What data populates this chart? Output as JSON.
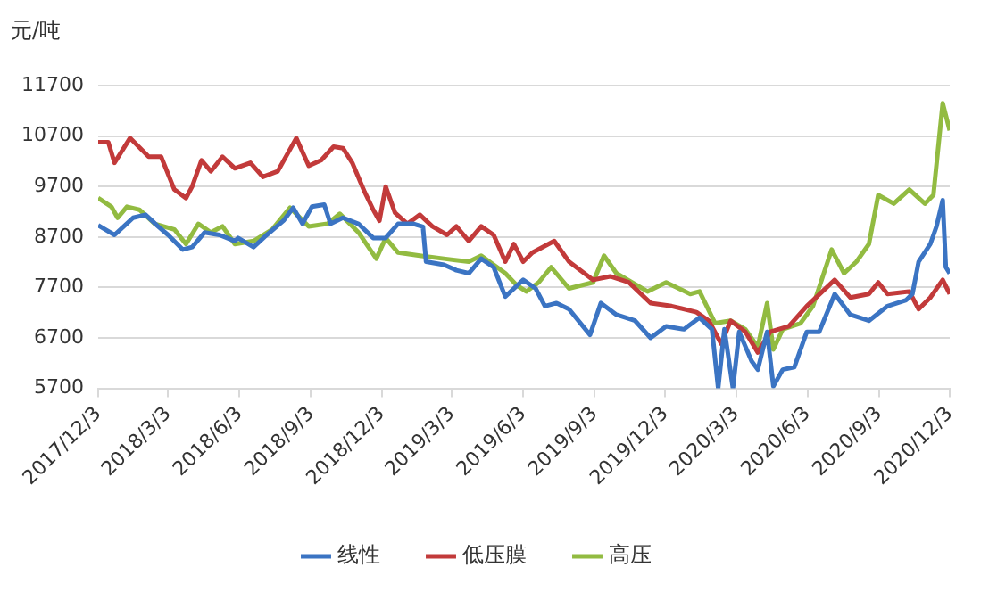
{
  "chart_data": {
    "type": "line",
    "ylabel": "元/吨",
    "xlim": [
      "2017-12-03",
      "2020-12-03"
    ],
    "ylim": [
      5700,
      11700
    ],
    "yticks": [
      5700,
      6700,
      7700,
      8700,
      9700,
      10700,
      11700
    ],
    "xticks": [
      {
        "value": "2017-12-03",
        "label": "2017/12/3"
      },
      {
        "value": "2018-03-03",
        "label": "2018/3/3"
      },
      {
        "value": "2018-06-03",
        "label": "2018/6/3"
      },
      {
        "value": "2018-09-03",
        "label": "2018/9/3"
      },
      {
        "value": "2018-12-03",
        "label": "2018/12/3"
      },
      {
        "value": "2019-03-03",
        "label": "2019/3/3"
      },
      {
        "value": "2019-06-03",
        "label": "2019/6/3"
      },
      {
        "value": "2019-09-03",
        "label": "2019/9/3"
      },
      {
        "value": "2019-12-03",
        "label": "2019/12/3"
      },
      {
        "value": "2020-03-03",
        "label": "2020/3/3"
      },
      {
        "value": "2020-06-03",
        "label": "2020/6/3"
      },
      {
        "value": "2020-09-03",
        "label": "2020/9/3"
      },
      {
        "value": "2020-12-03",
        "label": "2020/12/3"
      }
    ],
    "grid": "y",
    "legend": "bottom",
    "marker": "none",
    "line_style": "solid",
    "series": [
      {
        "name": "线性",
        "color": "#3b74c3",
        "x": [
          "2017-12-03",
          "2017-12-24",
          "2018-01-17",
          "2018-02-02",
          "2018-02-18",
          "2018-03-03",
          "2018-03-22",
          "2018-04-03",
          "2018-04-19",
          "2018-05-08",
          "2018-05-28",
          "2018-06-01",
          "2018-06-21",
          "2018-07-08",
          "2018-07-30",
          "2018-08-11",
          "2018-08-23",
          "2018-09-04",
          "2018-09-20",
          "2018-09-28",
          "2018-10-14",
          "2018-11-03",
          "2018-11-22",
          "2018-12-08",
          "2018-12-24",
          "2019-01-13",
          "2019-01-25",
          "2019-01-29",
          "2019-02-21",
          "2019-03-09",
          "2019-03-25",
          "2019-04-10",
          "2019-04-26",
          "2019-05-11",
          "2019-06-03",
          "2019-06-19",
          "2019-07-01",
          "2019-07-16",
          "2019-08-01",
          "2019-08-28",
          "2019-09-11",
          "2019-10-01",
          "2019-10-25",
          "2019-11-14",
          "2019-12-04",
          "2019-12-27",
          "2020-01-16",
          "2020-02-01",
          "2020-02-09",
          "2020-02-17",
          "2020-02-28",
          "2020-03-07",
          "2020-03-23",
          "2020-03-31",
          "2020-04-12",
          "2020-04-20",
          "2020-05-02",
          "2020-05-17",
          "2020-06-02",
          "2020-06-18",
          "2020-07-08",
          "2020-07-28",
          "2020-08-21",
          "2020-09-14",
          "2020-10-08",
          "2020-10-16",
          "2020-10-24",
          "2020-11-08",
          "2020-11-16",
          "2020-11-24",
          "2020-11-28",
          "2020-12-03"
        ],
        "values": [
          8930,
          8740,
          9080,
          9140,
          8910,
          8740,
          8450,
          8500,
          8790,
          8740,
          8620,
          8680,
          8500,
          8740,
          9030,
          9280,
          8960,
          9300,
          9340,
          8960,
          9080,
          8960,
          8680,
          8680,
          8960,
          8960,
          8900,
          8210,
          8150,
          8040,
          7980,
          8270,
          8100,
          7520,
          7850,
          7680,
          7330,
          7390,
          7270,
          6760,
          7390,
          7160,
          7040,
          6700,
          6930,
          6870,
          7100,
          6870,
          5700,
          6870,
          5700,
          6820,
          6240,
          6070,
          6820,
          5740,
          6070,
          6120,
          6820,
          6820,
          7570,
          7160,
          7040,
          7330,
          7450,
          7570,
          8210,
          8560,
          8910,
          9430,
          8100,
          7980
        ]
      },
      {
        "name": "低压膜",
        "color": "#c23a3a",
        "x": [
          "2017-12-03",
          "2017-12-16",
          "2017-12-24",
          "2018-01-13",
          "2018-02-06",
          "2018-02-22",
          "2018-03-11",
          "2018-03-26",
          "2018-04-03",
          "2018-04-15",
          "2018-04-27",
          "2018-05-12",
          "2018-05-28",
          "2018-06-17",
          "2018-07-03",
          "2018-07-22",
          "2018-08-15",
          "2018-08-31",
          "2018-09-16",
          "2018-10-02",
          "2018-10-14",
          "2018-10-26",
          "2018-11-11",
          "2018-11-22",
          "2018-11-30",
          "2018-12-08",
          "2018-12-20",
          "2019-01-05",
          "2019-01-21",
          "2019-02-06",
          "2019-02-25",
          "2019-03-09",
          "2019-03-25",
          "2019-04-10",
          "2019-04-26",
          "2019-05-11",
          "2019-05-22",
          "2019-06-03",
          "2019-06-15",
          "2019-07-13",
          "2019-08-01",
          "2019-09-01",
          "2019-09-23",
          "2019-10-17",
          "2019-11-14",
          "2019-12-11",
          "2020-01-12",
          "2020-01-28",
          "2020-02-13",
          "2020-02-25",
          "2020-03-15",
          "2020-03-31",
          "2020-04-16",
          "2020-05-10",
          "2020-06-02",
          "2020-07-08",
          "2020-07-28",
          "2020-08-21",
          "2020-09-02",
          "2020-09-14",
          "2020-10-12",
          "2020-10-24",
          "2020-11-08",
          "2020-11-24",
          "2020-12-03"
        ],
        "values": [
          10580,
          10580,
          10170,
          10660,
          10290,
          10290,
          9640,
          9470,
          9700,
          10220,
          10000,
          10290,
          10060,
          10170,
          9890,
          10000,
          10660,
          10110,
          10220,
          10490,
          10460,
          10170,
          9590,
          9240,
          9020,
          9700,
          9180,
          8960,
          9140,
          8910,
          8740,
          8910,
          8620,
          8910,
          8740,
          8210,
          8560,
          8210,
          8390,
          8620,
          8210,
          7850,
          7920,
          7800,
          7390,
          7330,
          7210,
          7040,
          6580,
          7040,
          6820,
          6410,
          6820,
          6930,
          7330,
          7850,
          7500,
          7570,
          7800,
          7570,
          7620,
          7270,
          7500,
          7850,
          7570
        ]
      },
      {
        "name": "高压",
        "color": "#92bb41",
        "x": [
          "2017-12-03",
          "2017-12-20",
          "2017-12-28",
          "2018-01-09",
          "2018-01-25",
          "2018-02-14",
          "2018-03-11",
          "2018-03-26",
          "2018-04-11",
          "2018-04-27",
          "2018-05-12",
          "2018-05-28",
          "2018-06-21",
          "2018-07-15",
          "2018-08-07",
          "2018-08-31",
          "2018-09-24",
          "2018-10-10",
          "2018-11-03",
          "2018-11-26",
          "2018-12-08",
          "2018-12-24",
          "2019-01-21",
          "2019-02-21",
          "2019-03-25",
          "2019-04-10",
          "2019-05-11",
          "2019-05-26",
          "2019-06-07",
          "2019-06-23",
          "2019-07-09",
          "2019-08-01",
          "2019-09-01",
          "2019-09-15",
          "2019-10-01",
          "2019-11-10",
          "2019-12-04",
          "2020-01-04",
          "2020-01-16",
          "2020-02-05",
          "2020-02-25",
          "2020-03-15",
          "2020-03-31",
          "2020-04-12",
          "2020-04-20",
          "2020-05-02",
          "2020-05-25",
          "2020-06-10",
          "2020-07-04",
          "2020-07-20",
          "2020-08-05",
          "2020-08-21",
          "2020-09-02",
          "2020-09-22",
          "2020-10-12",
          "2020-11-01",
          "2020-11-12",
          "2020-11-24",
          "2020-12-03"
        ],
        "values": [
          9470,
          9300,
          9080,
          9300,
          9240,
          8960,
          8850,
          8560,
          8960,
          8790,
          8910,
          8560,
          8620,
          8850,
          9280,
          8910,
          8960,
          9160,
          8790,
          8270,
          8680,
          8390,
          8330,
          8270,
          8210,
          8330,
          7980,
          7740,
          7620,
          7800,
          8100,
          7680,
          7800,
          8330,
          7980,
          7620,
          7800,
          7570,
          7620,
          6990,
          7040,
          6870,
          6520,
          7390,
          6470,
          6870,
          6990,
          7330,
          8450,
          7980,
          8210,
          8560,
          9530,
          9360,
          9640,
          9360,
          9530,
          11350,
          10810
        ]
      }
    ]
  }
}
